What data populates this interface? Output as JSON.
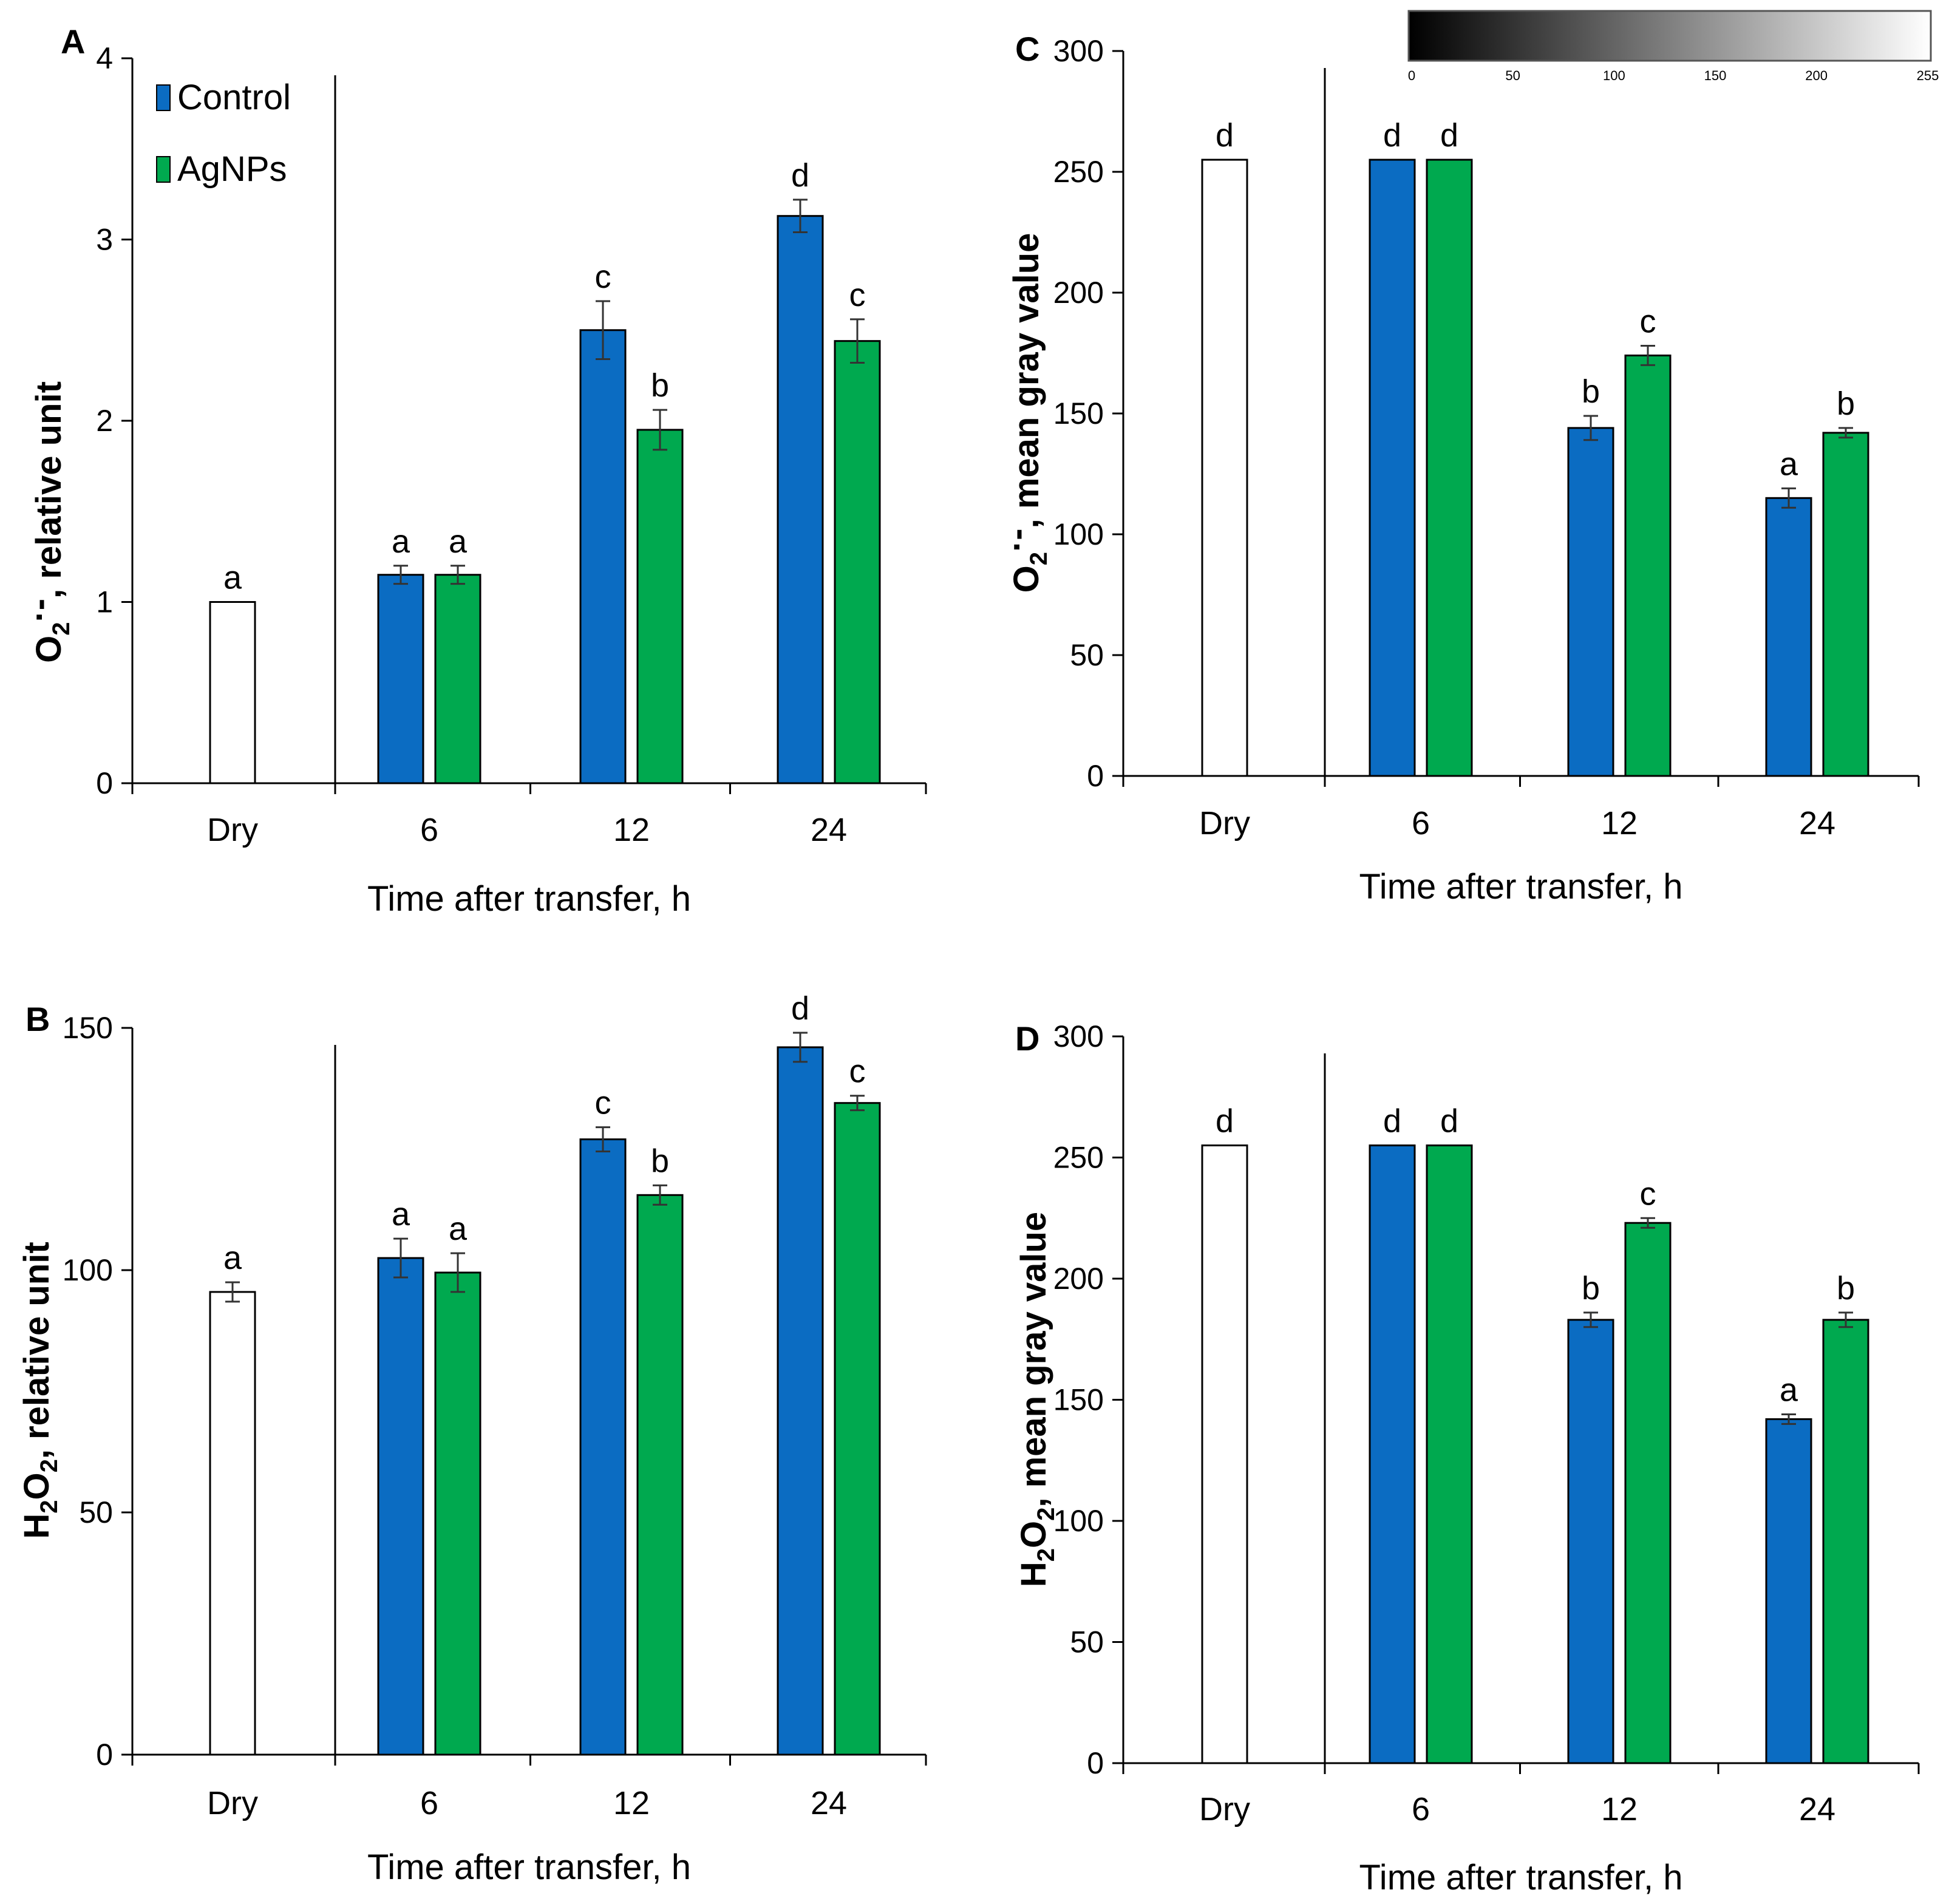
{
  "colors": {
    "control": "#0b6cc2",
    "agnps": "#00a94f",
    "dry": "#ffffff",
    "axis": "#000000"
  },
  "legend": {
    "control": "Control",
    "agnps": "AgNPs"
  },
  "colorbar": {
    "ticks": [
      "0",
      "50",
      "100",
      "150",
      "200",
      "255"
    ]
  },
  "chart_data": [
    {
      "panel": "A",
      "type": "bar",
      "title": "",
      "ylabel": {
        "main": "O",
        "sub": "2",
        "sup": "·-",
        "rest": ", relative unit"
      },
      "xlabel": "Time after transfer, h",
      "categories": [
        "Dry",
        "6",
        "12",
        "24"
      ],
      "ylim": [
        0,
        4
      ],
      "yticks": [
        "0",
        "1",
        "2",
        "3",
        "4"
      ],
      "dry": {
        "value": 1.0,
        "err": 0.0,
        "label": "a"
      },
      "series": [
        {
          "name": "Control",
          "values": [
            null,
            1.15,
            2.5,
            3.13
          ],
          "errors": [
            null,
            0.05,
            0.16,
            0.09
          ],
          "labels": [
            "",
            "a",
            "c",
            "d"
          ]
        },
        {
          "name": "AgNPs",
          "values": [
            null,
            1.15,
            1.95,
            2.44
          ],
          "errors": [
            null,
            0.05,
            0.11,
            0.12
          ],
          "labels": [
            "",
            "a",
            "b",
            "c"
          ]
        }
      ]
    },
    {
      "panel": "B",
      "type": "bar",
      "title": "",
      "ylabel": {
        "main": "H",
        "sub": "2",
        "mid": "O",
        "sub2": "2",
        "rest": ", relative unit"
      },
      "xlabel": "Time after transfer, h",
      "categories": [
        "Dry",
        "6",
        "12",
        "24"
      ],
      "ylim": [
        0,
        150
      ],
      "yticks": [
        "0",
        "50",
        "100",
        "150"
      ],
      "dry": {
        "value": 95.5,
        "err": 2.0,
        "label": "a"
      },
      "series": [
        {
          "name": "Control",
          "values": [
            null,
            102.5,
            127.0,
            146.0
          ],
          "errors": [
            null,
            4.0,
            2.5,
            3.0
          ],
          "labels": [
            "",
            "a",
            "c",
            "d"
          ]
        },
        {
          "name": "AgNPs",
          "values": [
            null,
            99.5,
            115.5,
            134.5
          ],
          "errors": [
            null,
            4.0,
            2.0,
            1.5
          ],
          "labels": [
            "",
            "a",
            "b",
            "c"
          ]
        }
      ]
    },
    {
      "panel": "C",
      "type": "bar",
      "title": "",
      "ylabel": {
        "main": "O",
        "sub": "2",
        "sup": "·-",
        "rest": ", mean gray value"
      },
      "xlabel": "Time after transfer, h",
      "categories": [
        "Dry",
        "6",
        "12",
        "24"
      ],
      "ylim": [
        0,
        300
      ],
      "yticks": [
        "0",
        "50",
        "100",
        "150",
        "200",
        "250",
        "300"
      ],
      "dry": {
        "value": 255,
        "err": 0,
        "label": "d"
      },
      "series": [
        {
          "name": "Control",
          "values": [
            null,
            255,
            144,
            115
          ],
          "errors": [
            null,
            0,
            5,
            4
          ],
          "labels": [
            "",
            "d",
            "b",
            "a"
          ]
        },
        {
          "name": "AgNPs",
          "values": [
            null,
            255,
            174,
            142
          ],
          "errors": [
            null,
            0,
            4,
            2
          ],
          "labels": [
            "",
            "d",
            "c",
            "b"
          ]
        }
      ]
    },
    {
      "panel": "D",
      "type": "bar",
      "title": "",
      "ylabel": {
        "main": "H",
        "sub": "2",
        "mid": "O",
        "sub2": "2",
        "rest": ", mean gray value"
      },
      "xlabel": "Time after transfer, h",
      "categories": [
        "Dry",
        "6",
        "12",
        "24"
      ],
      "ylim": [
        0,
        300
      ],
      "yticks": [
        "0",
        "50",
        "100",
        "150",
        "200",
        "250",
        "300"
      ],
      "dry": {
        "value": 255,
        "err": 0,
        "label": "d"
      },
      "series": [
        {
          "name": "Control",
          "values": [
            null,
            255,
            183,
            142
          ],
          "errors": [
            null,
            0,
            3,
            2
          ],
          "labels": [
            "",
            "d",
            "b",
            "a"
          ]
        },
        {
          "name": "AgNPs",
          "values": [
            null,
            255,
            223,
            183
          ],
          "errors": [
            null,
            0,
            2,
            3
          ],
          "labels": [
            "",
            "d",
            "c",
            "b"
          ]
        }
      ]
    }
  ]
}
